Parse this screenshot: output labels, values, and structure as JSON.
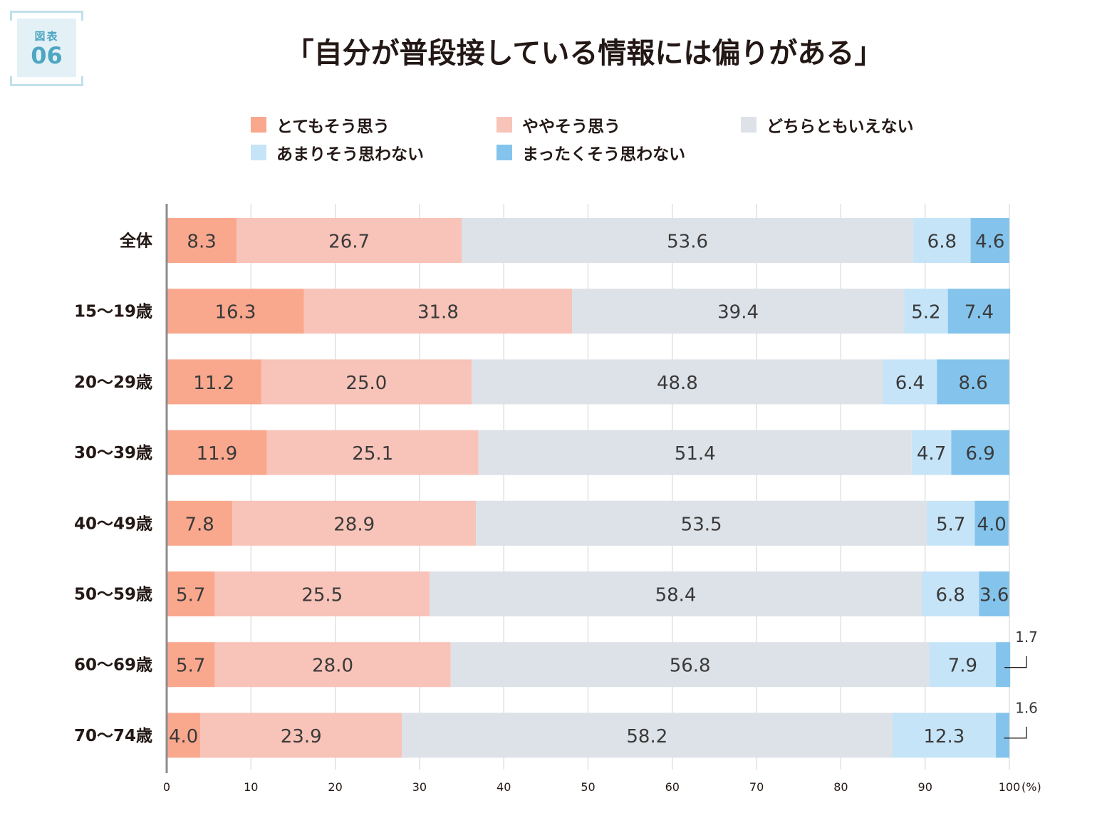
{
  "badge": {
    "label": "図表",
    "number": "06"
  },
  "title": "「自分が普段接している情報には偏りがある」",
  "legend_layout_rows": [
    [
      0,
      1,
      2
    ],
    [
      3,
      4
    ]
  ],
  "chart_data": {
    "type": "bar",
    "orientation": "horizontal",
    "stacked": true,
    "title": "「自分が普段接している情報には偏りがある」",
    "categories": [
      "全体",
      "15～19歳",
      "20～29歳",
      "30～39歳",
      "40～49歳",
      "50～59歳",
      "60～69歳",
      "70～74歳"
    ],
    "series": [
      {
        "name": "とてもそう思う",
        "color": "#f9a88e",
        "values": [
          8.3,
          16.3,
          11.2,
          11.9,
          7.8,
          5.7,
          5.7,
          4.0
        ]
      },
      {
        "name": "ややそう思う",
        "color": "#f8c3b8",
        "values": [
          26.7,
          31.8,
          25.0,
          25.1,
          28.9,
          25.5,
          28.0,
          23.9
        ]
      },
      {
        "name": "どちらともいえない",
        "color": "#dde1e8",
        "values": [
          53.6,
          39.4,
          48.8,
          51.4,
          53.5,
          58.4,
          56.8,
          58.2
        ]
      },
      {
        "name": "あまりそう思わない",
        "color": "#c6e4f8",
        "values": [
          6.8,
          5.2,
          6.4,
          4.7,
          5.7,
          6.8,
          7.9,
          12.3
        ]
      },
      {
        "name": "まったくそう思わない",
        "color": "#84c4ec",
        "values": [
          4.6,
          7.4,
          8.6,
          6.9,
          4.0,
          3.6,
          1.7,
          1.6
        ]
      }
    ],
    "xlim": [
      0,
      100
    ],
    "xticks": [
      0,
      10,
      20,
      30,
      40,
      50,
      60,
      70,
      80,
      90,
      100
    ],
    "unit": "(%)",
    "grid": true
  }
}
